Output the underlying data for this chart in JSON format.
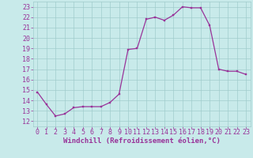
{
  "x": [
    0,
    1,
    2,
    3,
    4,
    5,
    6,
    7,
    8,
    9,
    10,
    11,
    12,
    13,
    14,
    15,
    16,
    17,
    18,
    19,
    20,
    21,
    22,
    23
  ],
  "y": [
    14.8,
    13.6,
    12.5,
    12.7,
    13.3,
    13.4,
    13.4,
    13.4,
    13.8,
    14.6,
    18.9,
    19.0,
    21.8,
    22.0,
    21.7,
    22.2,
    23.0,
    22.9,
    22.9,
    21.2,
    17.0,
    16.8,
    16.8,
    16.5
  ],
  "line_color": "#993399",
  "marker_color": "#993399",
  "bg_color": "#c8eaea",
  "grid_color": "#a0cccc",
  "tick_color": "#993399",
  "xlabel": "Windchill (Refroidissement éolien,°C)",
  "xlim": [
    -0.5,
    23.5
  ],
  "ylim": [
    11.5,
    23.5
  ],
  "yticks": [
    12,
    13,
    14,
    15,
    16,
    17,
    18,
    19,
    20,
    21,
    22,
    23
  ],
  "xticks": [
    0,
    1,
    2,
    3,
    4,
    5,
    6,
    7,
    8,
    9,
    10,
    11,
    12,
    13,
    14,
    15,
    16,
    17,
    18,
    19,
    20,
    21,
    22,
    23
  ],
  "xlabel_fontsize": 6.5,
  "tick_fontsize": 6,
  "marker_size": 2.0,
  "line_width": 0.9
}
